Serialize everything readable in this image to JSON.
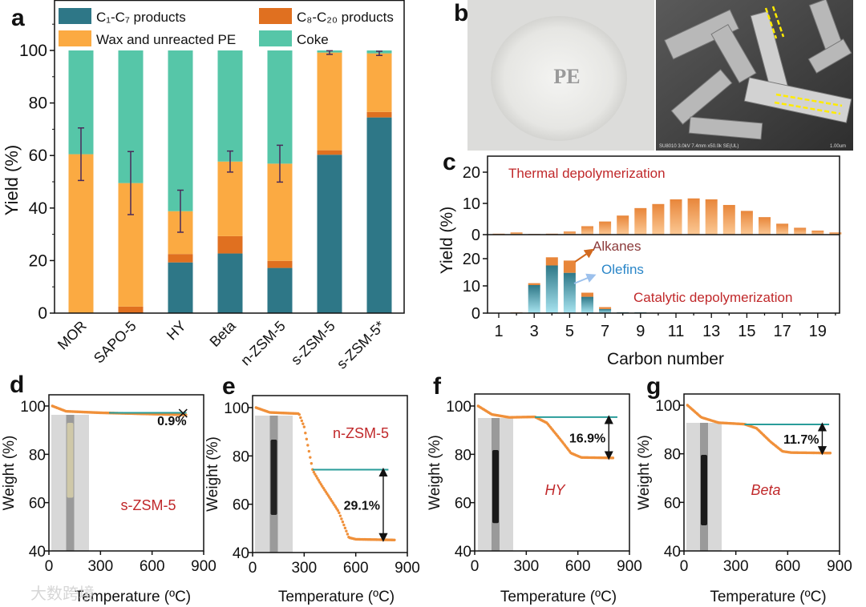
{
  "panel_labels": [
    "a",
    "b",
    "c",
    "d",
    "e",
    "f",
    "g"
  ],
  "watermark": "大数跨境",
  "photos": {
    "pe_label": "PE",
    "sem_info": "SU8010 3.0kV 7.4mm x50.0k SE(UL)",
    "sem_scale": "1.00um"
  },
  "colors": {
    "c1c7": "#2e7787",
    "c8c20": "#e07020",
    "wax": "#fbaa42",
    "coke": "#56c6a8",
    "thermal": "#f0a060",
    "olefin": "#6fc3d6",
    "tga_curve": "#f0903a",
    "baseline": "#2a9d9a",
    "red_text": "#c0282a"
  },
  "chart_data": [
    {
      "panel": "a",
      "type": "bar",
      "stacked": true,
      "ylabel": "Yield (%)",
      "ylim": [
        0,
        119
      ],
      "y_ticks": [
        "0",
        "20",
        "40",
        "60",
        "80",
        "100"
      ],
      "categories": [
        "MOR",
        "SAPO-5",
        "HY",
        "Beta",
        "n-ZSM-5",
        "s-ZSM-5",
        "s-ZSM-5*"
      ],
      "series": [
        {
          "name": "C₁-C₇ products",
          "values": [
            0,
            0,
            19.3,
            22.7,
            17.2,
            60.3,
            74.5
          ]
        },
        {
          "name": "C₈-C₂₀ products",
          "values": [
            0,
            2.5,
            3.2,
            6.6,
            2.7,
            1.7,
            2.1
          ]
        },
        {
          "name": "Wax and unreacted PE",
          "values": [
            60.5,
            47.0,
            16.3,
            28.4,
            37.0,
            37.2,
            22.3
          ]
        },
        {
          "name": "Coke",
          "values": [
            39.5,
            50.5,
            61.2,
            42.3,
            43.1,
            0.8,
            1.1
          ]
        }
      ],
      "errors_top_of_wax": [
        10,
        12,
        8,
        4,
        7,
        0.7,
        0.8
      ]
    },
    {
      "panel": "c",
      "type": "bar",
      "xlabel": "Carbon number",
      "ylabel": "Yield (%)",
      "x": [
        1,
        2,
        3,
        4,
        5,
        6,
        7,
        8,
        9,
        10,
        11,
        12,
        13,
        14,
        15,
        16,
        17,
        18,
        19,
        20
      ],
      "x_ticks": [
        "1",
        "3",
        "5",
        "7",
        "9",
        "11",
        "13",
        "15",
        "17",
        "19"
      ],
      "subplots": [
        {
          "title": "Thermal depolymerization",
          "ylim": [
            0,
            25
          ],
          "y_ticks": [
            "0",
            "10",
            "20"
          ],
          "series": [
            {
              "name": "Thermal",
              "values": [
                0.3,
                0.7,
                0.2,
                0.3,
                1.0,
                2.7,
                4.2,
                6.1,
                8.5,
                9.8,
                11.3,
                11.6,
                11.3,
                9.5,
                7.6,
                5.6,
                3.5,
                2.2,
                1.3,
                0.7
              ]
            }
          ]
        },
        {
          "title": "Catalytic depolymerization",
          "ylim": [
            0,
            29
          ],
          "y_ticks": [
            "0",
            "10",
            "20"
          ],
          "annotations": [
            "Alkanes",
            "Olefins"
          ],
          "series": [
            {
              "name": "Olefins",
              "values": [
                0,
                0.2,
                10.3,
                17.5,
                14.8,
                6.0,
                1.5,
                0.3,
                0.3,
                0,
                0,
                0,
                0,
                0,
                0,
                0,
                0,
                0,
                0,
                0
              ]
            },
            {
              "name": "Alkanes",
              "values": [
                0,
                0.1,
                0.7,
                3.0,
                4.5,
                1.5,
                0.7,
                0,
                0,
                0,
                0,
                0,
                0,
                0,
                0,
                0,
                0,
                0,
                0,
                0
              ]
            }
          ]
        }
      ]
    },
    {
      "panel": "d",
      "type": "line",
      "sample": "s-ZSM-5",
      "xlabel": "Temperature (ºC)",
      "ylabel": "Weight (%)",
      "xlim": [
        0,
        900
      ],
      "ylim": [
        40,
        100
      ],
      "x_ticks": [
        "0",
        "300",
        "600",
        "900"
      ],
      "y_ticks": [
        "40",
        "60",
        "80",
        "100"
      ],
      "points": [
        [
          20,
          100
        ],
        [
          100,
          97.8
        ],
        [
          300,
          97.2
        ],
        [
          800,
          96.3
        ]
      ],
      "baseline": {
        "from": 350,
        "to": 800,
        "weight": 97.2
      },
      "loss_label": "0.9%",
      "arrow_at": null
    },
    {
      "panel": "e",
      "type": "line",
      "sample": "n-ZSM-5",
      "xlabel": "Temperature (ºC)",
      "ylabel": "Weight (%)",
      "xlim": [
        0,
        900
      ],
      "ylim": [
        40,
        100
      ],
      "x_ticks": [
        "0",
        "300",
        "600",
        "900"
      ],
      "y_ticks": [
        "40",
        "60",
        "80",
        "100"
      ],
      "points": [
        [
          20,
          100
        ],
        [
          100,
          98
        ],
        [
          270,
          97.5
        ],
        [
          300,
          92
        ],
        [
          350,
          74
        ],
        [
          400,
          68
        ],
        [
          500,
          57
        ],
        [
          560,
          46.2
        ],
        [
          600,
          45.5
        ],
        [
          830,
          45.2
        ]
      ],
      "baseline": {
        "from": 350,
        "to": 790,
        "weight": 74.3
      },
      "loss_label": "29.1%",
      "arrow_at": 760,
      "arrow_to": 45.2
    },
    {
      "panel": "f",
      "type": "line",
      "sample": "HY",
      "xlabel": "Temperature (ºC)",
      "ylabel": "Weight (%)",
      "xlim": [
        0,
        900
      ],
      "ylim": [
        40,
        100
      ],
      "x_ticks": [
        "0",
        "300",
        "600",
        "900"
      ],
      "y_ticks": [
        "40",
        "60",
        "80",
        "100"
      ],
      "points": [
        [
          20,
          100
        ],
        [
          100,
          96.5
        ],
        [
          200,
          95.3
        ],
        [
          350,
          95.5
        ],
        [
          420,
          93
        ],
        [
          500,
          86
        ],
        [
          560,
          80.5
        ],
        [
          620,
          78.7
        ],
        [
          810,
          78.5
        ]
      ],
      "baseline": {
        "from": 350,
        "to": 830,
        "weight": 95.4
      },
      "loss_label": "16.9%",
      "arrow_at": 780,
      "arrow_to": 78.5
    },
    {
      "panel": "g",
      "type": "line",
      "sample": "Beta",
      "xlabel": "Temperature (ºC)",
      "ylabel": "Weight (%)",
      "xlim": [
        0,
        900
      ],
      "ylim": [
        40,
        100
      ],
      "x_ticks": [
        "0",
        "300",
        "600",
        "900"
      ],
      "y_ticks": [
        "40",
        "60",
        "80",
        "100"
      ],
      "points": [
        [
          20,
          100
        ],
        [
          100,
          95
        ],
        [
          200,
          92.8
        ],
        [
          350,
          92.2
        ],
        [
          420,
          90.5
        ],
        [
          500,
          85
        ],
        [
          570,
          81
        ],
        [
          620,
          80.5
        ],
        [
          850,
          80.3
        ]
      ],
      "baseline": {
        "from": 350,
        "to": 840,
        "weight": 92.1
      },
      "loss_label": "11.7%",
      "arrow_at": 800,
      "arrow_to": 80.3
    }
  ]
}
